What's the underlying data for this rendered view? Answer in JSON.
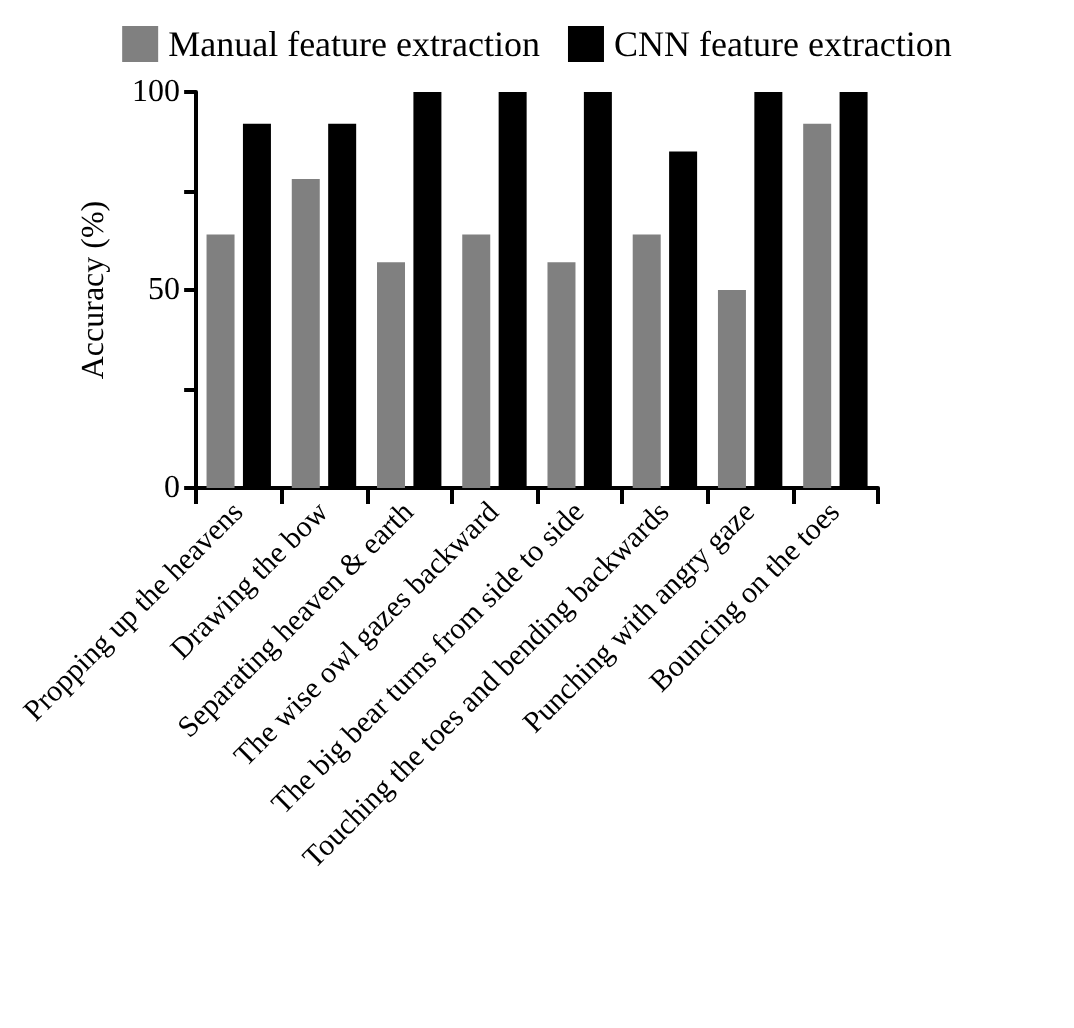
{
  "chart_data": {
    "type": "bar",
    "ylabel": "Accuracy (%)",
    "categories": [
      "Propping up the heavens",
      "Drawing the bow",
      "Separating heaven & earth",
      "The wise owl gazes backward",
      "The big bear turns from side to side",
      "Touching the toes and bending backwards",
      "Punching with angry gaze",
      "Bouncing on the toes"
    ],
    "series": [
      {
        "name": "Manual feature extraction",
        "color": "#808080",
        "values": [
          64,
          78,
          57,
          64,
          57,
          64,
          50,
          92
        ]
      },
      {
        "name": "CNN feature extraction",
        "color": "#000000",
        "values": [
          92,
          92,
          100,
          100,
          100,
          85,
          100,
          100
        ]
      }
    ],
    "ylim": [
      0,
      100
    ],
    "yticks": [
      0,
      {
        "value": 25,
        "label": null
      },
      50,
      {
        "value": 75,
        "label": null
      },
      100
    ],
    "grid": false,
    "legend": "top"
  }
}
